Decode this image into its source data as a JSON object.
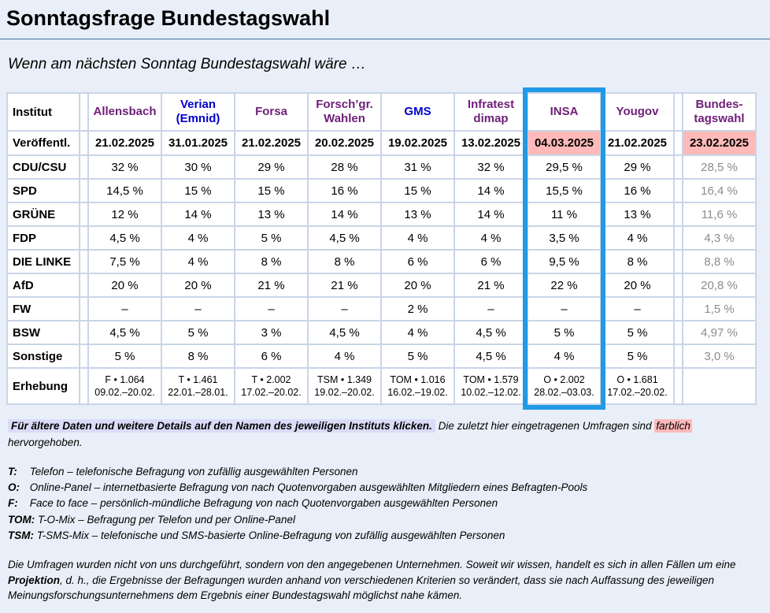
{
  "page": {
    "title": "Sonntagsfrage Bundestagswahl",
    "subtitle": "Wenn am nächsten Sonntag Bundestagswahl wäre …"
  },
  "colors": {
    "page_background": "#E9EFF8",
    "table_grid": "#C9D5E8",
    "cell_background": "#FFFFFF",
    "title_rule": "#3B6FA5",
    "link_blue": "#0000CC",
    "link_purple": "#6E1E78",
    "highlight_pink": "#FFB9B9",
    "highlight_lavender": "#DBDBF8",
    "insa_box_blue": "#2199E6",
    "muted_gray": "#8C8C8C"
  },
  "table": {
    "institut_label": "Institut",
    "published_label": "Veröffentl.",
    "survey_label": "Erhebung",
    "parties": [
      "CDU/CSU",
      "SPD",
      "GRÜNE",
      "FDP",
      "DIE LINKE",
      "AfD",
      "FW",
      "BSW",
      "Sonstige"
    ],
    "institutes": [
      {
        "name": "Allensbach",
        "color": "purple",
        "published": "21.02.2025",
        "values": [
          "32 %",
          "14,5 %",
          "12 %",
          "4,5 %",
          "7,5 %",
          "20 %",
          "–",
          "4,5 %",
          "5 %"
        ],
        "survey_method": "F • 1.064",
        "survey_period": "09.02.–20.02."
      },
      {
        "name": "Verian\n(Emnid)",
        "color": "blue",
        "published": "31.01.2025",
        "values": [
          "30 %",
          "15 %",
          "14 %",
          "4 %",
          "4 %",
          "20 %",
          "–",
          "5 %",
          "8 %"
        ],
        "survey_method": "T • 1.461",
        "survey_period": "22.01.–28.01."
      },
      {
        "name": "Forsa",
        "color": "purple",
        "published": "21.02.2025",
        "values": [
          "29 %",
          "15 %",
          "13 %",
          "5 %",
          "8 %",
          "21 %",
          "–",
          "3 %",
          "6 %"
        ],
        "survey_method": "T • 2.002",
        "survey_period": "17.02.–20.02."
      },
      {
        "name": "Forsch’gr.\nWahlen",
        "color": "purple",
        "published": "20.02.2025",
        "values": [
          "28 %",
          "16 %",
          "14 %",
          "4,5 %",
          "8 %",
          "21 %",
          "–",
          "4,5 %",
          "4 %"
        ],
        "survey_method": "TSM • 1.349",
        "survey_period": "19.02.–20.02."
      },
      {
        "name": "GMS",
        "color": "blue",
        "published": "19.02.2025",
        "values": [
          "31 %",
          "15 %",
          "13 %",
          "4 %",
          "6 %",
          "20 %",
          "2 %",
          "4 %",
          "5 %"
        ],
        "survey_method": "TOM • 1.016",
        "survey_period": "16.02.–19.02."
      },
      {
        "name": "Infratest\ndimap",
        "color": "purple",
        "published": "13.02.2025",
        "values": [
          "32 %",
          "14 %",
          "14 %",
          "4 %",
          "6 %",
          "21 %",
          "–",
          "4,5 %",
          "4,5 %"
        ],
        "survey_method": "TOM • 1.579",
        "survey_period": "10.02.–12.02."
      },
      {
        "name": "INSA",
        "color": "purple",
        "published": "04.03.2025",
        "published_highlight": true,
        "highlight_box": true,
        "values": [
          "29,5 %",
          "15,5 %",
          "11 %",
          "3,5 %",
          "9,5 %",
          "22 %",
          "–",
          "5 %",
          "4 %"
        ],
        "survey_method": "O • 2.002",
        "survey_period": "28.02.–03.03."
      },
      {
        "name": "Yougov",
        "color": "purple",
        "published": "21.02.2025",
        "values": [
          "29 %",
          "16 %",
          "13 %",
          "4 %",
          "8 %",
          "20 %",
          "–",
          "5 %",
          "5 %"
        ],
        "survey_method": "O • 1.681",
        "survey_period": "17.02.–20.02."
      },
      {
        "name": "Bundes-\ntagswahl",
        "color": "purple",
        "separated": true,
        "muted_values": true,
        "published": "23.02.2025",
        "published_highlight": true,
        "values": [
          "28,5 %",
          "16,4 %",
          "11,6 %",
          "4,3 %",
          "8,8 %",
          "20,8 %",
          "1,5 %",
          "4,97 %",
          "3,0 %"
        ],
        "survey_method": "",
        "survey_period": ""
      }
    ]
  },
  "notes": {
    "click_hint": "Für ältere Daten und weitere Details auf den Namen des jeweiligen Instituts klicken.",
    "recent_prefix": "Die zuletzt hier eingetragenen Umfragen sind",
    "recent_highlight": "farblich",
    "recent_suffix": "hervorgehoben."
  },
  "legend": {
    "items": [
      {
        "abbr": "T:",
        "text": "Telefon – telefonische Befragung von zufällig ausgewählten Personen"
      },
      {
        "abbr": "O:",
        "text": "Online-Panel – internetbasierte Befragung von nach Quotenvorgaben ausgewählten Mitgliedern eines Befragten-Pools"
      },
      {
        "abbr": "F:",
        "text": "Face to face – persönlich-mündliche Befragung von nach Quotenvorgaben ausgewählten Personen"
      },
      {
        "abbr": "TOM:",
        "text": "T-O-Mix – Befragung per Telefon und per Online-Panel"
      },
      {
        "abbr": "TSM:",
        "text": "T-SMS-Mix – telefonische und SMS-basierte Online-Befragung von zufällig ausgewählten Personen"
      }
    ]
  },
  "disclaimer": {
    "part1": "Die Umfragen wurden nicht von uns durchgeführt, sondern von den angegebenen Unternehmen. Soweit wir wissen, handelt es sich in allen Fällen um eine",
    "bold": "Projektion",
    "part2": ", d. h., die Ergebnisse der Befragungen wurden anhand von verschiedenen Kriterien so verändert, dass sie nach Auffassung des jeweiligen Meinungsforschungsunternehmens dem Ergebnis einer Bundestagswahl möglichst nahe kämen."
  }
}
